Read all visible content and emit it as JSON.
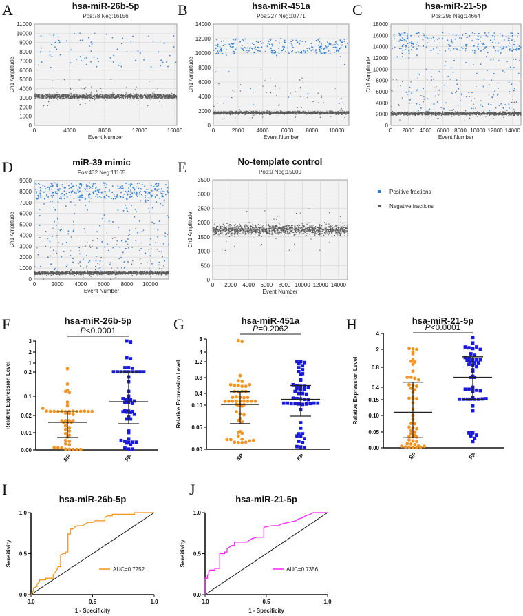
{
  "colors": {
    "positive": "#2f7fd8",
    "negative": "#5a5a5a",
    "sp": "#f7931e",
    "fp": "#1818e0",
    "roc_i": "#f7931e",
    "roc_j": "#ff22ff"
  },
  "legend": {
    "positive": "Positive fractions",
    "negative": "Negative fractions"
  },
  "chart_data": [
    {
      "panel": "A",
      "type": "scatter",
      "title": "hsa-miR-26b-5p",
      "subtitle": "Pos:78 Neg:16156",
      "pos_count": 78,
      "neg_count": 16156,
      "xlabel": "Event Number",
      "ylabel": "Ch1 Amplitude",
      "xlim": [
        0,
        16234
      ],
      "ylim": [
        0,
        11000
      ],
      "xticks": [
        "0",
        "4000",
        "8000",
        "12000",
        "16000"
      ],
      "yticks": [
        "0",
        "1000",
        "2000",
        "3000",
        "4000",
        "5000",
        "6000",
        "7000",
        "8000",
        "9000",
        "10000",
        "11000"
      ],
      "negative_band": [
        2800,
        3500
      ],
      "positive_cluster": [
        6300,
        10100
      ],
      "rain_fraction": 0.0,
      "grid": true
    },
    {
      "panel": "B",
      "type": "scatter",
      "title": "hsa-miR-451a",
      "subtitle": "Pos:227 Neg:10771",
      "pos_count": 227,
      "neg_count": 10771,
      "xlabel": "Event Number",
      "ylabel": "Ch1 Amplitude",
      "xlim": [
        0,
        10998
      ],
      "ylim": [
        0,
        14000
      ],
      "xticks": [
        "0",
        "2000",
        "4000",
        "6000",
        "8000",
        "10000"
      ],
      "yticks": [
        "0",
        "2000",
        "4000",
        "6000",
        "8000",
        "10000",
        "12000",
        "14000"
      ],
      "negative_band": [
        1450,
        2050
      ],
      "positive_cluster": [
        9900,
        12000
      ],
      "rain_fraction": 0.1,
      "grid": true
    },
    {
      "panel": "C",
      "type": "scatter",
      "title": "hsa-miR-21-5p",
      "subtitle": "Pos:298 Neg:14664",
      "pos_count": 298,
      "neg_count": 14664,
      "xlabel": "Event Number",
      "ylabel": "Ch1 Amplitude",
      "xlim": [
        0,
        14962
      ],
      "ylim": [
        0,
        18000
      ],
      "xticks": [
        "0",
        "2000",
        "4000",
        "6000",
        "8000",
        "10000",
        "12000",
        "14000"
      ],
      "yticks": [
        "0",
        "2000",
        "4000",
        "6000",
        "8000",
        "10000",
        "12000",
        "14000",
        "16000",
        "18000"
      ],
      "negative_band": [
        1700,
        2500
      ],
      "positive_cluster": [
        13200,
        16500
      ],
      "rain_fraction": 0.35,
      "grid": true
    },
    {
      "panel": "D",
      "type": "scatter",
      "title": "miR-39 mimic",
      "subtitle": "Pos:432 Neg:11165",
      "pos_count": 432,
      "neg_count": 11165,
      "xlabel": "Event Number",
      "ylabel": "Ch1 Amplitude",
      "xlim": [
        0,
        11597
      ],
      "ylim": [
        0,
        9000
      ],
      "xticks": [
        "0",
        "2000",
        "4000",
        "6000",
        "8000",
        "10000"
      ],
      "yticks": [
        "0",
        "1000",
        "2000",
        "3000",
        "4000",
        "5000",
        "6000",
        "7000",
        "8000",
        "9000"
      ],
      "negative_band": [
        350,
        750
      ],
      "positive_cluster": [
        7300,
        8800
      ],
      "rain_fraction": 0.3,
      "grid": true
    },
    {
      "panel": "E",
      "type": "scatter",
      "title": "No-template control",
      "subtitle": "Pos:0 Neg:15009",
      "pos_count": 0,
      "neg_count": 15009,
      "xlabel": "Event Number",
      "ylabel": "Ch1 Amplitude",
      "xlim": [
        0,
        15009
      ],
      "ylim": [
        0,
        3500
      ],
      "xticks": [
        "0",
        "2000",
        "4000",
        "6000",
        "8000",
        "10000",
        "12000",
        "14000"
      ],
      "yticks": [
        "0",
        "500",
        "1000",
        "1500",
        "2000",
        "2500",
        "3000",
        "3500"
      ],
      "negative_band": [
        1500,
        2000
      ],
      "positive_cluster": null,
      "rain_fraction": 0.0,
      "grid": true
    },
    {
      "panel": "F",
      "type": "scatter",
      "title": "hsa-miR-26b-5p",
      "pvalue": "<0.0001",
      "p_label": "P",
      "ylabel": "Relative Expression Level",
      "categories": [
        "SP",
        "FP"
      ],
      "yticks": [
        0,
        0.01,
        0.02,
        0.1,
        0.2,
        1,
        2,
        3
      ],
      "ytick_labels": [
        "0.00",
        "0.01",
        "0.02",
        "0.1",
        "0.2",
        "1",
        "2",
        "3"
      ],
      "series": [
        {
          "name": "SP",
          "mean": 0.016,
          "sd": [
            0.0072,
            0.038
          ],
          "values": [
            0.5,
            0.15,
            0.12,
            0.115,
            0.125,
            0.075,
            0.06,
            0.05,
            0.038,
            0.037,
            0.037,
            0.036,
            0.038,
            0.036,
            0.037,
            0.038,
            0.036,
            0.037,
            0.038,
            0.036,
            0.037,
            0.035,
            0.03,
            0.028,
            0.024,
            0.017,
            0.017,
            0.016,
            0.017,
            0.016,
            0.017,
            0.016,
            0.014,
            0.013,
            0.012,
            0.011,
            0.0095,
            0.0085,
            0.0075,
            0.0055,
            0.005,
            0.0035,
            0.003,
            0.0013,
            0.0012,
            0.0011,
            0.0005,
            0.0004,
            0.0003,
            0.0003,
            0.0003
          ]
        },
        {
          "name": "FP",
          "mean": 0.077,
          "sd": [
            0.0152,
            0.2
          ],
          "values": [
            3,
            2.9,
            1.5,
            1.4,
            0.6,
            0.6,
            0.55,
            0.22,
            0.22,
            0.22,
            0.22,
            0.22,
            0.22,
            0.22,
            0.22,
            0.22,
            0.18,
            0.16,
            0.12,
            0.1,
            0.09,
            0.085,
            0.085,
            0.08,
            0.075,
            0.075,
            0.07,
            0.04,
            0.038,
            0.036,
            0.035,
            0.034,
            0.033,
            0.025,
            0.019,
            0.018,
            0.018,
            0.011,
            0.01,
            0.0065,
            0.0055,
            0.005,
            0.0045,
            0.0045,
            0.0045,
            0.004,
            0.003,
            0.001,
            0.0005,
            0.0005
          ]
        }
      ]
    },
    {
      "panel": "G",
      "type": "scatter",
      "title": "hsa-miR-451a",
      "pvalue": "=0.2062",
      "p_label": "P",
      "ylabel": "Relative Expression Level",
      "categories": [
        "SP",
        "FP"
      ],
      "yticks": [
        0,
        0.05,
        0.1,
        0.4,
        0.8,
        1.2,
        4,
        8
      ],
      "ytick_labels": [
        "0.00",
        "0.05",
        "0.10",
        "0.4",
        "0.8",
        "1.2",
        "4",
        "8"
      ],
      "series": [
        {
          "name": "SP",
          "mean": 0.115,
          "sd": [
            0.058,
            0.44
          ],
          "values": [
            7.5,
            7.2,
            0.85,
            0.72,
            0.7,
            0.62,
            0.6,
            0.6,
            0.58,
            0.58,
            0.62,
            0.45,
            0.44,
            0.45,
            0.45,
            0.3,
            0.32,
            0.3,
            0.29,
            0.3,
            0.2,
            0.2,
            0.2,
            0.2,
            0.2,
            0.2,
            0.2,
            0.2,
            0.2,
            0.12,
            0.11,
            0.11,
            0.1,
            0.098,
            0.085,
            0.08,
            0.078,
            0.07,
            0.065,
            0.062,
            0.04,
            0.038,
            0.036,
            0.03,
            0.023,
            0.022,
            0.022,
            0.016,
            0.015,
            0.015,
            0.016,
            0.019,
            0.02
          ]
        },
        {
          "name": "FP",
          "mean": 0.25,
          "sd": [
            0.075,
            0.6
          ],
          "values": [
            1.25,
            1.2,
            1.18,
            1.15,
            1.1,
            1.05,
            1.0,
            0.95,
            0.9,
            0.88,
            0.75,
            0.72,
            0.62,
            0.6,
            0.58,
            0.58,
            0.55,
            0.52,
            0.5,
            0.5,
            0.45,
            0.4,
            0.4,
            0.38,
            0.28,
            0.27,
            0.26,
            0.25,
            0.24,
            0.15,
            0.15,
            0.14,
            0.14,
            0.13,
            0.12,
            0.13,
            0.14,
            0.15,
            0.15,
            0.09,
            0.06,
            0.048,
            0.035,
            0.035,
            0.03,
            0.03,
            0.024,
            0.018,
            0.015,
            0.006,
            0.005,
            0.004
          ]
        }
      ]
    },
    {
      "panel": "H",
      "type": "scatter",
      "title": "hsa-miR-21-5p",
      "pvalue": "<0.0001",
      "p_label": "P",
      "ylabel": "Relative Expression Level",
      "categories": [
        "SP",
        "FP"
      ],
      "yticks": [
        0,
        0.05,
        0.1,
        0.15,
        0.4,
        0.8,
        2,
        4
      ],
      "ytick_labels": [
        "0.00",
        "0.05",
        "0.10",
        "0.15",
        "0.4",
        "0.8",
        "2",
        "4"
      ],
      "series": [
        {
          "name": "SP",
          "mean": 0.11,
          "sd": [
            0.032,
            0.5
          ],
          "values": [
            2.1,
            2.05,
            2.0,
            1.7,
            1.8,
            1.3,
            1.2,
            1.15,
            1.0,
            0.72,
            0.6,
            0.6,
            0.58,
            0.55,
            0.45,
            0.44,
            0.42,
            0.38,
            0.35,
            0.3,
            0.2,
            0.18,
            0.17,
            0.17,
            0.14,
            0.12,
            0.1,
            0.088,
            0.076,
            0.075,
            0.065,
            0.063,
            0.06,
            0.054,
            0.05,
            0.045,
            0.04,
            0.036,
            0.035,
            0.034,
            0.025,
            0.022,
            0.02,
            0.013,
            0.012,
            0.01,
            0.006,
            0.005,
            0.003,
            0.002,
            0.001,
            0.001,
            0.002,
            0.005
          ]
        },
        {
          "name": "FP",
          "mean": 0.6,
          "sd": [
            0.155,
            1.5
          ],
          "values": [
            3.5,
            2.8,
            2.3,
            2.2,
            2.1,
            2.3,
            2.0,
            1.7,
            1.6,
            1.45,
            1.4,
            1.3,
            1.3,
            1.25,
            1.3,
            1.2,
            1.1,
            1.1,
            1.0,
            0.95,
            0.85,
            0.75,
            0.72,
            0.6,
            0.62,
            0.6,
            0.4,
            0.36,
            0.36,
            0.35,
            0.34,
            0.33,
            0.32,
            0.2,
            0.16,
            0.16,
            0.16,
            0.16,
            0.16,
            0.16,
            0.165,
            0.17,
            0.13,
            0.115,
            0.047,
            0.047,
            0.04,
            0.038,
            0.03,
            0.02
          ]
        }
      ]
    },
    {
      "panel": "I",
      "type": "line",
      "title": "hsa-miR-26b-5p",
      "xlabel": "1 - Specificity",
      "ylabel": "Sensitivity",
      "xlim": [
        0,
        1
      ],
      "ylim": [
        0,
        1
      ],
      "xticks": [
        "0.0",
        "0.5",
        "1.0"
      ],
      "yticks": [
        "0.0",
        "0.5",
        "1.0"
      ],
      "legend": "AUC=0.7252",
      "x": [
        0,
        0.01,
        0.02,
        0.02,
        0.05,
        0.05,
        0.07,
        0.07,
        0.12,
        0.12,
        0.18,
        0.18,
        0.2,
        0.21,
        0.22,
        0.24,
        0.24,
        0.26,
        0.28,
        0.28,
        0.3,
        0.3,
        0.32,
        0.32,
        0.34,
        0.36,
        0.38,
        0.42,
        0.44,
        0.46,
        0.5,
        0.52,
        0.6,
        0.6,
        0.62,
        0.66,
        0.66,
        0.84,
        0.84,
        1
      ],
      "y": [
        0,
        0.02,
        0.05,
        0.08,
        0.1,
        0.13,
        0.16,
        0.18,
        0.18,
        0.2,
        0.2,
        0.24,
        0.28,
        0.3,
        0.34,
        0.34,
        0.48,
        0.5,
        0.5,
        0.52,
        0.52,
        0.74,
        0.74,
        0.8,
        0.8,
        0.83,
        0.84,
        0.84,
        0.86,
        0.88,
        0.88,
        0.9,
        0.9,
        0.94,
        0.96,
        0.96,
        0.98,
        0.98,
        1,
        1
      ]
    },
    {
      "panel": "J",
      "type": "line",
      "title": "hsa-miR-21-5p",
      "xlabel": "1 - Specificity",
      "ylabel": "Sensitivity",
      "xlim": [
        0,
        1
      ],
      "ylim": [
        0,
        1
      ],
      "xticks": [
        "0.0",
        "0.5",
        "1.0"
      ],
      "yticks": [
        "0.0",
        "0.5",
        "1.0"
      ],
      "legend": "AUC=0.7356",
      "x": [
        0,
        0,
        0.02,
        0.02,
        0.03,
        0.03,
        0.04,
        0.08,
        0.08,
        0.12,
        0.12,
        0.16,
        0.16,
        0.18,
        0.18,
        0.2,
        0.22,
        0.24,
        0.24,
        0.34,
        0.36,
        0.38,
        0.42,
        0.48,
        0.48,
        0.54,
        0.6,
        0.62,
        0.68,
        0.74,
        0.76,
        0.8,
        0.82,
        0.86,
        0.88,
        1
      ],
      "y": [
        0,
        0.2,
        0.2,
        0.24,
        0.24,
        0.28,
        0.3,
        0.3,
        0.32,
        0.32,
        0.5,
        0.5,
        0.52,
        0.52,
        0.56,
        0.58,
        0.6,
        0.6,
        0.64,
        0.64,
        0.66,
        0.68,
        0.7,
        0.7,
        0.82,
        0.84,
        0.84,
        0.86,
        0.88,
        0.9,
        0.92,
        0.94,
        0.96,
        0.98,
        1,
        1
      ]
    }
  ]
}
